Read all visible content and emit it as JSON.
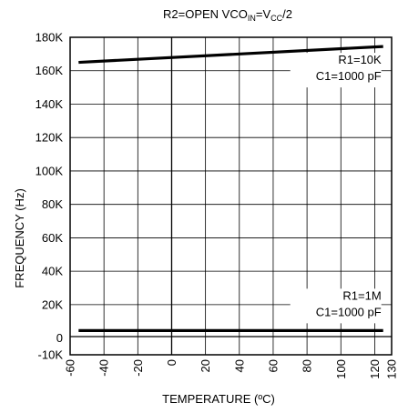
{
  "chart_data": {
    "type": "line",
    "title": {
      "parts": [
        {
          "text": "R2=OPEN   VCO"
        },
        {
          "text": "IN",
          "sub": true
        },
        {
          "text": "=V"
        },
        {
          "text": "CC",
          "sub": true
        },
        {
          "text": "/2"
        }
      ]
    },
    "xlabel": "TEMPERATURE (ºC)",
    "ylabel": "FREQUENCY (Hz)",
    "xlim": [
      -60,
      130
    ],
    "ylim": [
      -10000,
      180000
    ],
    "x_ticks": [
      -60,
      -40,
      -20,
      0,
      20,
      40,
      60,
      80,
      100,
      120,
      130
    ],
    "x_tick_labels": [
      "-60",
      "-40",
      "-20",
      "0",
      "20",
      "40",
      "60",
      "80",
      "100",
      "120",
      "130"
    ],
    "y_ticks": [
      -10000,
      0,
      20000,
      40000,
      60000,
      80000,
      100000,
      120000,
      140000,
      160000,
      180000
    ],
    "y_tick_labels": [
      "-10K",
      "0",
      "20K",
      "40K",
      "60K",
      "80K",
      "100K",
      "120K",
      "140K",
      "160K",
      "180K"
    ],
    "grid": true,
    "series": [
      {
        "x": [
          -55,
          125
        ],
        "y": [
          165000,
          174500
        ],
        "annotation": [
          "R1=10K",
          "C1=1000 pF"
        ]
      },
      {
        "x": [
          -55,
          125
        ],
        "y": [
          4500,
          4500
        ],
        "annotation": [
          "R1=1M",
          "C1=1000 pF"
        ]
      }
    ]
  }
}
